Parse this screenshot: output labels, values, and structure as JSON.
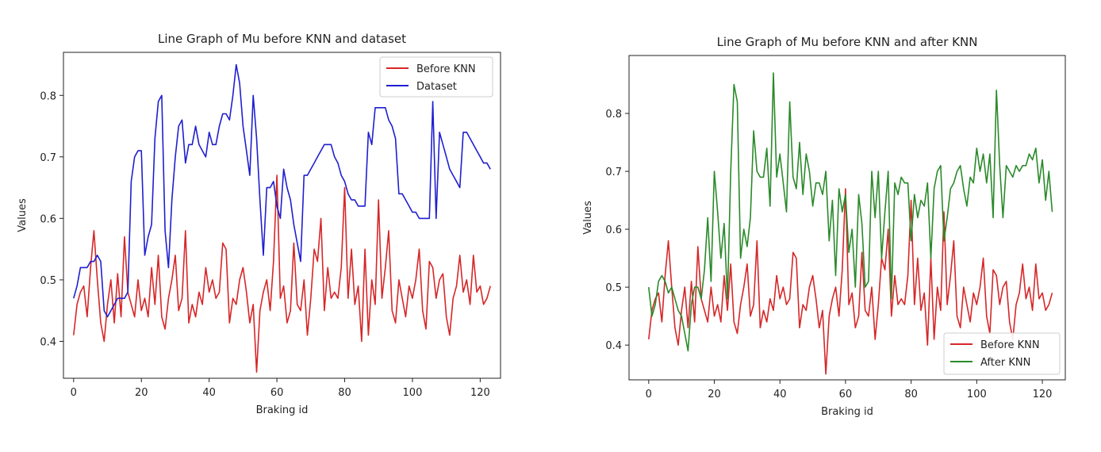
{
  "chart_data": [
    {
      "type": "line",
      "title": "Line Graph of Mu before KNN and dataset",
      "xlabel": "Braking id",
      "ylabel": "Values",
      "xlim": [
        -3,
        126
      ],
      "ylim": [
        0.34,
        0.87
      ],
      "xticks": [
        0,
        20,
        40,
        60,
        80,
        100,
        120
      ],
      "xtick_labels": [
        "0",
        "20",
        "40",
        "60",
        "80",
        "100",
        "120"
      ],
      "yticks": [
        0.4,
        0.5,
        0.6,
        0.7,
        0.8
      ],
      "ytick_labels": [
        "0.4",
        "0.5",
        "0.6",
        "0.7",
        "0.8"
      ],
      "legend_position": "top-right",
      "series": [
        {
          "name": "Before KNN",
          "color": "#d62728",
          "x": [
            0,
            1,
            2,
            3,
            4,
            5,
            6,
            7,
            8,
            9,
            10,
            11,
            12,
            13,
            14,
            15,
            16,
            17,
            18,
            19,
            20,
            21,
            22,
            23,
            24,
            25,
            26,
            27,
            28,
            29,
            30,
            31,
            32,
            33,
            34,
            35,
            36,
            37,
            38,
            39,
            40,
            41,
            42,
            43,
            44,
            45,
            46,
            47,
            48,
            49,
            50,
            51,
            52,
            53,
            54,
            55,
            56,
            57,
            58,
            59,
            60,
            61,
            62,
            63,
            64,
            65,
            66,
            67,
            68,
            69,
            70,
            71,
            72,
            73,
            74,
            75,
            76,
            77,
            78,
            79,
            80,
            81,
            82,
            83,
            84,
            85,
            86,
            87,
            88,
            89,
            90,
            91,
            92,
            93,
            94,
            95,
            96,
            97,
            98,
            99,
            100,
            101,
            102,
            103,
            104,
            105,
            106,
            107,
            108,
            109,
            110,
            111,
            112,
            113,
            114,
            115,
            116,
            117,
            118,
            119,
            120,
            121,
            122,
            123
          ],
          "values": [
            0.41,
            0.46,
            0.48,
            0.49,
            0.44,
            0.52,
            0.58,
            0.5,
            0.43,
            0.4,
            0.46,
            0.5,
            0.43,
            0.51,
            0.44,
            0.57,
            0.48,
            0.46,
            0.44,
            0.5,
            0.45,
            0.47,
            0.44,
            0.52,
            0.46,
            0.54,
            0.44,
            0.42,
            0.47,
            0.5,
            0.54,
            0.45,
            0.47,
            0.58,
            0.43,
            0.46,
            0.44,
            0.48,
            0.46,
            0.52,
            0.48,
            0.5,
            0.47,
            0.48,
            0.56,
            0.55,
            0.43,
            0.47,
            0.46,
            0.5,
            0.52,
            0.48,
            0.43,
            0.46,
            0.35,
            0.45,
            0.48,
            0.5,
            0.45,
            0.53,
            0.67,
            0.47,
            0.49,
            0.43,
            0.45,
            0.56,
            0.46,
            0.45,
            0.5,
            0.41,
            0.47,
            0.55,
            0.53,
            0.6,
            0.45,
            0.52,
            0.47,
            0.48,
            0.47,
            0.52,
            0.65,
            0.47,
            0.55,
            0.46,
            0.49,
            0.4,
            0.55,
            0.41,
            0.5,
            0.46,
            0.63,
            0.47,
            0.52,
            0.58,
            0.45,
            0.43,
            0.5,
            0.47,
            0.44,
            0.49,
            0.47,
            0.5,
            0.55,
            0.45,
            0.42,
            0.53,
            0.52,
            0.47,
            0.5,
            0.51,
            0.44,
            0.41,
            0.47,
            0.49,
            0.54,
            0.48,
            0.5,
            0.46,
            0.54,
            0.48,
            0.49,
            0.46,
            0.47,
            0.49
          ]
        },
        {
          "name": "Dataset",
          "color": "#1f1fd0",
          "x": [
            0,
            1,
            2,
            3,
            4,
            5,
            6,
            7,
            8,
            9,
            10,
            11,
            12,
            13,
            14,
            15,
            16,
            17,
            18,
            19,
            20,
            21,
            22,
            23,
            24,
            25,
            26,
            27,
            28,
            29,
            30,
            31,
            32,
            33,
            34,
            35,
            36,
            37,
            38,
            39,
            40,
            41,
            42,
            43,
            44,
            45,
            46,
            47,
            48,
            49,
            50,
            51,
            52,
            53,
            54,
            55,
            56,
            57,
            58,
            59,
            60,
            61,
            62,
            63,
            64,
            65,
            66,
            67,
            68,
            69,
            70,
            71,
            72,
            73,
            74,
            75,
            76,
            77,
            78,
            79,
            80,
            81,
            82,
            83,
            84,
            85,
            86,
            87,
            88,
            89,
            90,
            91,
            92,
            93,
            94,
            95,
            96,
            97,
            98,
            99,
            100,
            101,
            102,
            103,
            104,
            105,
            106,
            107,
            108,
            109,
            110,
            111,
            112,
            113,
            114,
            115,
            116,
            117,
            118,
            119,
            120,
            121,
            122,
            123
          ],
          "values": [
            0.47,
            0.49,
            0.52,
            0.52,
            0.52,
            0.53,
            0.53,
            0.54,
            0.53,
            0.45,
            0.44,
            0.45,
            0.46,
            0.47,
            0.47,
            0.47,
            0.48,
            0.66,
            0.7,
            0.71,
            0.71,
            0.54,
            0.57,
            0.59,
            0.73,
            0.79,
            0.8,
            0.58,
            0.52,
            0.63,
            0.7,
            0.75,
            0.76,
            0.69,
            0.72,
            0.72,
            0.75,
            0.72,
            0.71,
            0.7,
            0.74,
            0.72,
            0.72,
            0.75,
            0.77,
            0.77,
            0.76,
            0.8,
            0.85,
            0.82,
            0.75,
            0.71,
            0.67,
            0.8,
            0.73,
            0.63,
            0.54,
            0.65,
            0.65,
            0.66,
            0.62,
            0.6,
            0.68,
            0.65,
            0.63,
            0.59,
            0.56,
            0.53,
            0.67,
            0.67,
            0.68,
            0.69,
            0.7,
            0.71,
            0.72,
            0.72,
            0.72,
            0.7,
            0.69,
            0.67,
            0.66,
            0.64,
            0.63,
            0.63,
            0.62,
            0.62,
            0.62,
            0.74,
            0.72,
            0.78,
            0.78,
            0.78,
            0.78,
            0.76,
            0.75,
            0.73,
            0.64,
            0.64,
            0.63,
            0.62,
            0.61,
            0.61,
            0.6,
            0.6,
            0.6,
            0.6,
            0.79,
            0.6,
            0.74,
            0.72,
            0.7,
            0.68,
            0.67,
            0.66,
            0.65,
            0.74,
            0.74,
            0.73,
            0.72,
            0.71,
            0.7,
            0.69,
            0.69,
            0.68
          ]
        }
      ]
    },
    {
      "type": "line",
      "title": "Line Graph of Mu before KNN and after KNN",
      "xlabel": "Braking id",
      "ylabel": "Values",
      "xlim": [
        -6,
        127
      ],
      "ylim": [
        0.34,
        0.9
      ],
      "xticks": [
        0,
        20,
        40,
        60,
        80,
        100,
        120
      ],
      "xtick_labels": [
        "0",
        "20",
        "40",
        "60",
        "80",
        "100",
        "120"
      ],
      "yticks": [
        0.4,
        0.5,
        0.6,
        0.7,
        0.8
      ],
      "ytick_labels": [
        "0.4",
        "0.5",
        "0.6",
        "0.7",
        "0.8"
      ],
      "legend_position": "bottom-right",
      "series": [
        {
          "name": "Before KNN",
          "color": "#d62728",
          "x": [
            0,
            1,
            2,
            3,
            4,
            5,
            6,
            7,
            8,
            9,
            10,
            11,
            12,
            13,
            14,
            15,
            16,
            17,
            18,
            19,
            20,
            21,
            22,
            23,
            24,
            25,
            26,
            27,
            28,
            29,
            30,
            31,
            32,
            33,
            34,
            35,
            36,
            37,
            38,
            39,
            40,
            41,
            42,
            43,
            44,
            45,
            46,
            47,
            48,
            49,
            50,
            51,
            52,
            53,
            54,
            55,
            56,
            57,
            58,
            59,
            60,
            61,
            62,
            63,
            64,
            65,
            66,
            67,
            68,
            69,
            70,
            71,
            72,
            73,
            74,
            75,
            76,
            77,
            78,
            79,
            80,
            81,
            82,
            83,
            84,
            85,
            86,
            87,
            88,
            89,
            90,
            91,
            92,
            93,
            94,
            95,
            96,
            97,
            98,
            99,
            100,
            101,
            102,
            103,
            104,
            105,
            106,
            107,
            108,
            109,
            110,
            111,
            112,
            113,
            114,
            115,
            116,
            117,
            118,
            119,
            120,
            121,
            122,
            123
          ],
          "values": [
            0.41,
            0.46,
            0.48,
            0.49,
            0.44,
            0.52,
            0.58,
            0.5,
            0.43,
            0.4,
            0.46,
            0.5,
            0.43,
            0.51,
            0.44,
            0.57,
            0.48,
            0.46,
            0.44,
            0.5,
            0.45,
            0.47,
            0.44,
            0.52,
            0.46,
            0.54,
            0.44,
            0.42,
            0.47,
            0.5,
            0.54,
            0.45,
            0.47,
            0.58,
            0.43,
            0.46,
            0.44,
            0.48,
            0.46,
            0.52,
            0.48,
            0.5,
            0.47,
            0.48,
            0.56,
            0.55,
            0.43,
            0.47,
            0.46,
            0.5,
            0.52,
            0.48,
            0.43,
            0.46,
            0.35,
            0.45,
            0.48,
            0.5,
            0.45,
            0.53,
            0.67,
            0.47,
            0.49,
            0.43,
            0.45,
            0.56,
            0.46,
            0.45,
            0.5,
            0.41,
            0.47,
            0.55,
            0.53,
            0.6,
            0.45,
            0.52,
            0.47,
            0.48,
            0.47,
            0.52,
            0.65,
            0.47,
            0.55,
            0.46,
            0.49,
            0.4,
            0.55,
            0.41,
            0.5,
            0.46,
            0.63,
            0.47,
            0.52,
            0.58,
            0.45,
            0.43,
            0.5,
            0.47,
            0.44,
            0.49,
            0.47,
            0.5,
            0.55,
            0.45,
            0.42,
            0.53,
            0.52,
            0.47,
            0.5,
            0.51,
            0.44,
            0.41,
            0.47,
            0.49,
            0.54,
            0.48,
            0.5,
            0.46,
            0.54,
            0.48,
            0.49,
            0.46,
            0.47,
            0.49
          ]
        },
        {
          "name": "After KNN",
          "color": "#2a8a2a",
          "x": [
            0,
            1,
            2,
            3,
            4,
            5,
            6,
            7,
            8,
            9,
            10,
            11,
            12,
            13,
            14,
            15,
            16,
            17,
            18,
            19,
            20,
            21,
            22,
            23,
            24,
            25,
            26,
            27,
            28,
            29,
            30,
            31,
            32,
            33,
            34,
            35,
            36,
            37,
            38,
            39,
            40,
            41,
            42,
            43,
            44,
            45,
            46,
            47,
            48,
            49,
            50,
            51,
            52,
            53,
            54,
            55,
            56,
            57,
            58,
            59,
            60,
            61,
            62,
            63,
            64,
            65,
            66,
            67,
            68,
            69,
            70,
            71,
            72,
            73,
            74,
            75,
            76,
            77,
            78,
            79,
            80,
            81,
            82,
            83,
            84,
            85,
            86,
            87,
            88,
            89,
            90,
            91,
            92,
            93,
            94,
            95,
            96,
            97,
            98,
            99,
            100,
            101,
            102,
            103,
            104,
            105,
            106,
            107,
            108,
            109,
            110,
            111,
            112,
            113,
            114,
            115,
            116,
            117,
            118,
            119,
            120,
            121,
            122,
            123
          ],
          "values": [
            0.5,
            0.45,
            0.47,
            0.51,
            0.52,
            0.51,
            0.49,
            0.5,
            0.48,
            0.46,
            0.45,
            0.42,
            0.39,
            0.47,
            0.5,
            0.5,
            0.48,
            0.53,
            0.62,
            0.51,
            0.7,
            0.63,
            0.55,
            0.61,
            0.48,
            0.7,
            0.85,
            0.82,
            0.55,
            0.6,
            0.57,
            0.62,
            0.77,
            0.7,
            0.69,
            0.69,
            0.74,
            0.64,
            0.87,
            0.69,
            0.73,
            0.68,
            0.63,
            0.82,
            0.69,
            0.67,
            0.75,
            0.66,
            0.73,
            0.7,
            0.64,
            0.68,
            0.68,
            0.66,
            0.7,
            0.58,
            0.65,
            0.52,
            0.67,
            0.63,
            0.66,
            0.56,
            0.6,
            0.5,
            0.66,
            0.61,
            0.5,
            0.51,
            0.7,
            0.62,
            0.7,
            0.55,
            0.63,
            0.7,
            0.48,
            0.68,
            0.66,
            0.69,
            0.68,
            0.68,
            0.58,
            0.66,
            0.62,
            0.65,
            0.64,
            0.68,
            0.55,
            0.67,
            0.7,
            0.71,
            0.58,
            0.62,
            0.67,
            0.68,
            0.7,
            0.71,
            0.67,
            0.64,
            0.69,
            0.68,
            0.74,
            0.7,
            0.73,
            0.68,
            0.73,
            0.62,
            0.84,
            0.71,
            0.62,
            0.71,
            0.7,
            0.69,
            0.71,
            0.7,
            0.71,
            0.71,
            0.73,
            0.72,
            0.74,
            0.68,
            0.72,
            0.65,
            0.7,
            0.63
          ]
        }
      ]
    }
  ]
}
